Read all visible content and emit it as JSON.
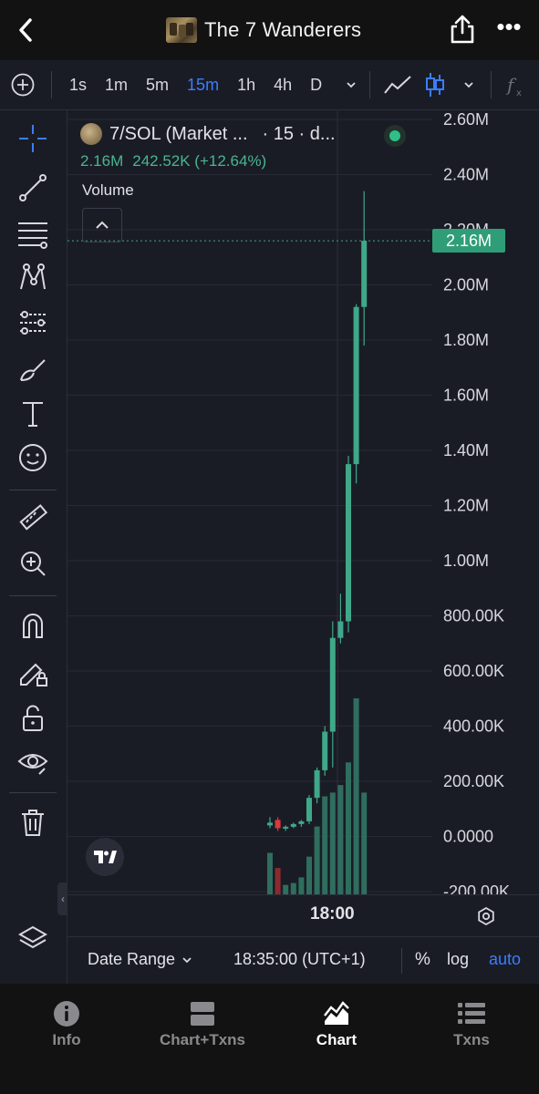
{
  "header": {
    "title": "The 7 Wanderers",
    "back_icon": "chevron-left-icon",
    "share_icon": "share-icon",
    "more_icon": "more-icon",
    "more_label": "•••"
  },
  "toolbar": {
    "intervals": [
      "1s",
      "1m",
      "5m",
      "15m",
      "1h",
      "4h",
      "D"
    ],
    "active_interval": "15m"
  },
  "legend": {
    "pair": "7/SOL (Market ...",
    "interval_text": "· 15 · d...",
    "last_value": "2.16M",
    "change": "242.52K (+12.64%)",
    "volume_label": "Volume"
  },
  "price_tag": "2.16M",
  "colors": {
    "up": "#3fa889",
    "down": "#d9383c",
    "accent": "#3b7dff",
    "background": "#1a1c25"
  },
  "chart_data": {
    "type": "candlestick",
    "y_ticks": [
      "2.60M",
      "2.40M",
      "2.20M",
      "2.00M",
      "1.80M",
      "1.60M",
      "1.40M",
      "1.20M",
      "1.00M",
      "800.00K",
      "600.00K",
      "400.00K",
      "200.00K",
      "0.0000",
      "-200.00K"
    ],
    "ylim": [
      -200000,
      2600000
    ],
    "x_ticks": [
      "18:00"
    ],
    "last_price": 2160000,
    "candles": [
      {
        "o": 40000,
        "h": 70000,
        "l": 30000,
        "c": 50000
      },
      {
        "o": 60000,
        "h": 70000,
        "l": 20000,
        "c": 30000
      },
      {
        "o": 30000,
        "h": 40000,
        "l": 20000,
        "c": 35000
      },
      {
        "o": 35000,
        "h": 50000,
        "l": 30000,
        "c": 45000
      },
      {
        "o": 45000,
        "h": 60000,
        "l": 35000,
        "c": 55000
      },
      {
        "o": 55000,
        "h": 150000,
        "l": 45000,
        "c": 140000
      },
      {
        "o": 140000,
        "h": 250000,
        "l": 120000,
        "c": 240000
      },
      {
        "o": 240000,
        "h": 400000,
        "l": 220000,
        "c": 380000
      },
      {
        "o": 380000,
        "h": 780000,
        "l": 250000,
        "c": 720000
      },
      {
        "o": 720000,
        "h": 880000,
        "l": 700000,
        "c": 780000
      },
      {
        "o": 780000,
        "h": 1380000,
        "l": 740000,
        "c": 1350000
      },
      {
        "o": 1350000,
        "h": 1930000,
        "l": 1280000,
        "c": 1920000
      },
      {
        "o": 1920000,
        "h": 2340000,
        "l": 1780000,
        "c": 2160000
      }
    ],
    "volume": [
      110000,
      70000,
      25000,
      30000,
      45000,
      100000,
      180000,
      260000,
      270000,
      290000,
      350000,
      520000,
      270000
    ]
  },
  "chart_footer": {
    "time_label": "18:00"
  },
  "bottom_strip": {
    "date_range": "Date Range",
    "clock": "18:35:00 (UTC+1)",
    "percent": "%",
    "log": "log",
    "auto": "auto"
  },
  "tabs": [
    {
      "label": "Info",
      "icon": "info-icon"
    },
    {
      "label": "Chart+Txns",
      "icon": "split-view-icon"
    },
    {
      "label": "Chart",
      "icon": "chart-icon",
      "active": true
    },
    {
      "label": "Txns",
      "icon": "list-icon"
    }
  ]
}
